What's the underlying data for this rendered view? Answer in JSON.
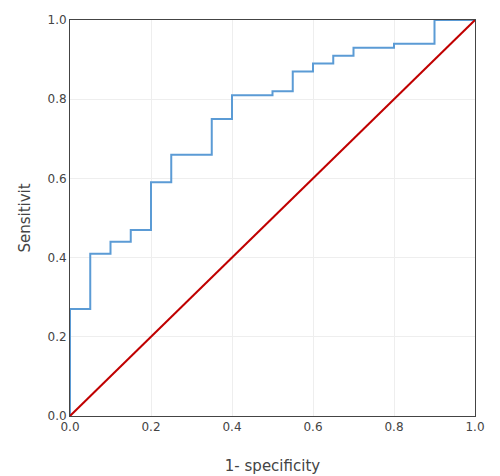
{
  "chart_data": {
    "type": "line",
    "xlabel": "1- specificity",
    "ylabel": "Sensitivit",
    "series": [
      {
        "color": "#5b9bd5",
        "x": [
          0.0,
          0.0,
          0.05,
          0.05,
          0.1,
          0.1,
          0.15,
          0.15,
          0.2,
          0.2,
          0.25,
          0.25,
          0.3,
          0.3,
          0.35,
          0.35,
          0.4,
          0.4,
          0.45,
          0.45,
          0.5,
          0.5,
          0.55,
          0.55,
          0.6,
          0.6,
          0.65,
          0.65,
          0.7,
          0.7,
          0.75,
          0.75,
          0.8,
          0.8,
          0.85,
          0.85,
          0.9,
          0.9,
          1.0
        ],
        "values": [
          0.0,
          0.27,
          0.27,
          0.41,
          0.41,
          0.44,
          0.44,
          0.47,
          0.47,
          0.59,
          0.59,
          0.66,
          0.66,
          0.66,
          0.66,
          0.75,
          0.75,
          0.81,
          0.81,
          0.81,
          0.81,
          0.82,
          0.82,
          0.87,
          0.87,
          0.89,
          0.89,
          0.91,
          0.91,
          0.93,
          0.93,
          0.93,
          0.93,
          0.94,
          0.94,
          0.94,
          0.94,
          1.0,
          1.0
        ]
      },
      {
        "color": "#c00000",
        "x": [
          0.0,
          1.0
        ],
        "values": [
          0.0,
          1.0
        ]
      }
    ],
    "xlim": [
      0.0,
      1.0
    ],
    "ylim": [
      0.0,
      1.0
    ],
    "xticks": [
      {
        "value": 0.0,
        "label": "0.0"
      },
      0.2,
      0.4,
      0.6,
      0.8,
      {
        "value": 1.0,
        "label": "1.0"
      }
    ],
    "yticks": [
      {
        "value": 0.0,
        "label": "0.0"
      },
      0.2,
      0.4,
      0.6,
      0.8,
      {
        "value": 1.0,
        "label": "1.0"
      }
    ],
    "grid": true
  }
}
